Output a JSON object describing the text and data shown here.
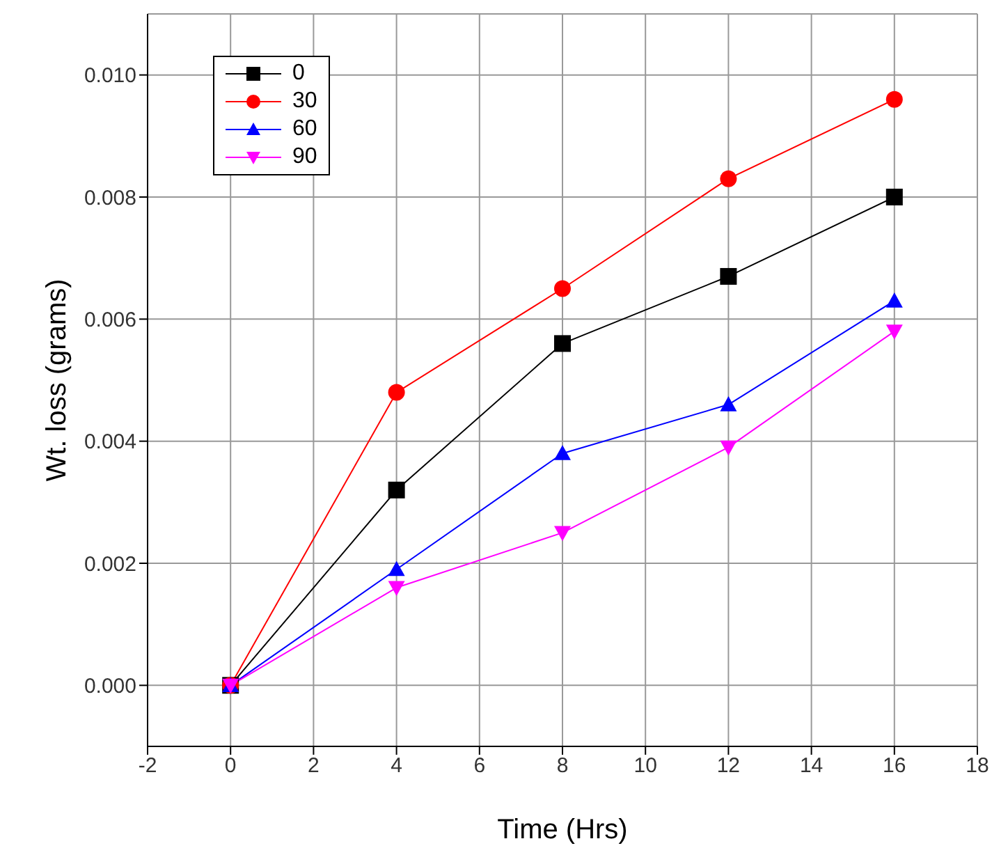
{
  "chart_data": {
    "type": "line",
    "xlabel": "Time (Hrs)",
    "ylabel": "Wt. loss (grams)",
    "x": [
      0,
      4,
      8,
      12,
      16
    ],
    "series": [
      {
        "name": "0",
        "color": "#000000",
        "marker": "square",
        "values": [
          0,
          0.0032,
          0.0056,
          0.0067,
          0.008
        ]
      },
      {
        "name": "30",
        "color": "#ff0000",
        "marker": "circle",
        "values": [
          0,
          0.0048,
          0.0065,
          0.0083,
          0.0096
        ]
      },
      {
        "name": "60",
        "color": "#0000ff",
        "marker": "triangle",
        "values": [
          0,
          0.0019,
          0.0038,
          0.0046,
          0.0063
        ]
      },
      {
        "name": "90",
        "color": "#ff00ff",
        "marker": "triangle-down",
        "values": [
          0,
          0.0016,
          0.0025,
          0.0039,
          0.0058
        ]
      }
    ],
    "xlim": [
      -2,
      18
    ],
    "xticks": [
      -2,
      0,
      2,
      4,
      6,
      8,
      10,
      12,
      14,
      16,
      18
    ],
    "ylim": [
      -0.001,
      0.011
    ],
    "yticks": [
      {
        "value": 0,
        "label": "0.000"
      },
      {
        "value": 0.002,
        "label": "0.002"
      },
      {
        "value": 0.004,
        "label": "0.004"
      },
      {
        "value": 0.006,
        "label": "0.006"
      },
      {
        "value": 0.008,
        "label": "0.008"
      },
      {
        "value": 0.01,
        "label": "0.010"
      }
    ],
    "grid": true,
    "legend": "top left",
    "line_style": "solid"
  }
}
